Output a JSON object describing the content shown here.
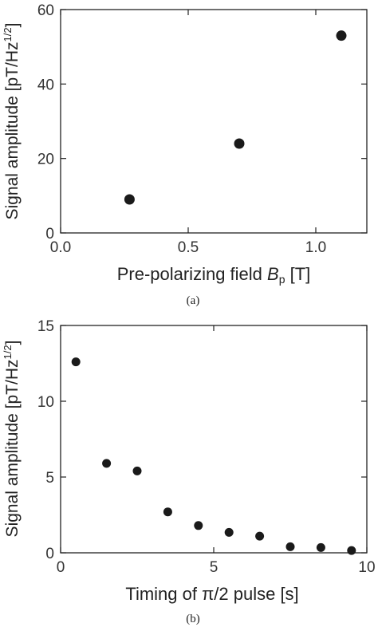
{
  "chart_data": [
    {
      "type": "scatter",
      "panel_label": "(a)",
      "xlabel_prefix": "Pre-polarizing field ",
      "xlabel_symbol": "B",
      "xlabel_subscript": "p",
      "xlabel_unit": " [T]",
      "ylabel": "Signal amplitude [pT/Hz",
      "ylabel_sup": "1/2",
      "ylabel_end": "]",
      "xlim": [
        0.0,
        1.2
      ],
      "ylim": [
        0,
        60
      ],
      "x_ticks": [
        0.0,
        0.5,
        1.0
      ],
      "x_tick_labels": [
        "0.0",
        "0.5",
        "1.0"
      ],
      "y_ticks": [
        0,
        20,
        40,
        60
      ],
      "y_tick_labels": [
        "0",
        "20",
        "40",
        "60"
      ],
      "grid": false,
      "points": [
        {
          "x": 0.27,
          "y": 9
        },
        {
          "x": 0.7,
          "y": 24
        },
        {
          "x": 1.1,
          "y": 53
        }
      ]
    },
    {
      "type": "scatter",
      "panel_label": "(b)",
      "xlabel": "Timing of π/2 pulse [s]",
      "ylabel": "Signal amplitude [pT/Hz",
      "ylabel_sup": "1/2",
      "ylabel_end": "]",
      "xlim": [
        0,
        10
      ],
      "ylim": [
        0,
        15
      ],
      "x_ticks": [
        0,
        5,
        10
      ],
      "x_tick_labels": [
        "0",
        "5",
        "10"
      ],
      "y_ticks": [
        0,
        5,
        10,
        15
      ],
      "y_tick_labels": [
        "0",
        "5",
        "10",
        "15"
      ],
      "grid": false,
      "points": [
        {
          "x": 0.5,
          "y": 12.6
        },
        {
          "x": 1.5,
          "y": 5.9
        },
        {
          "x": 2.5,
          "y": 5.4
        },
        {
          "x": 3.5,
          "y": 2.7
        },
        {
          "x": 4.5,
          "y": 1.8
        },
        {
          "x": 5.5,
          "y": 1.35
        },
        {
          "x": 6.5,
          "y": 1.1
        },
        {
          "x": 7.5,
          "y": 0.4
        },
        {
          "x": 8.5,
          "y": 0.35
        },
        {
          "x": 9.5,
          "y": 0.15
        }
      ]
    }
  ]
}
